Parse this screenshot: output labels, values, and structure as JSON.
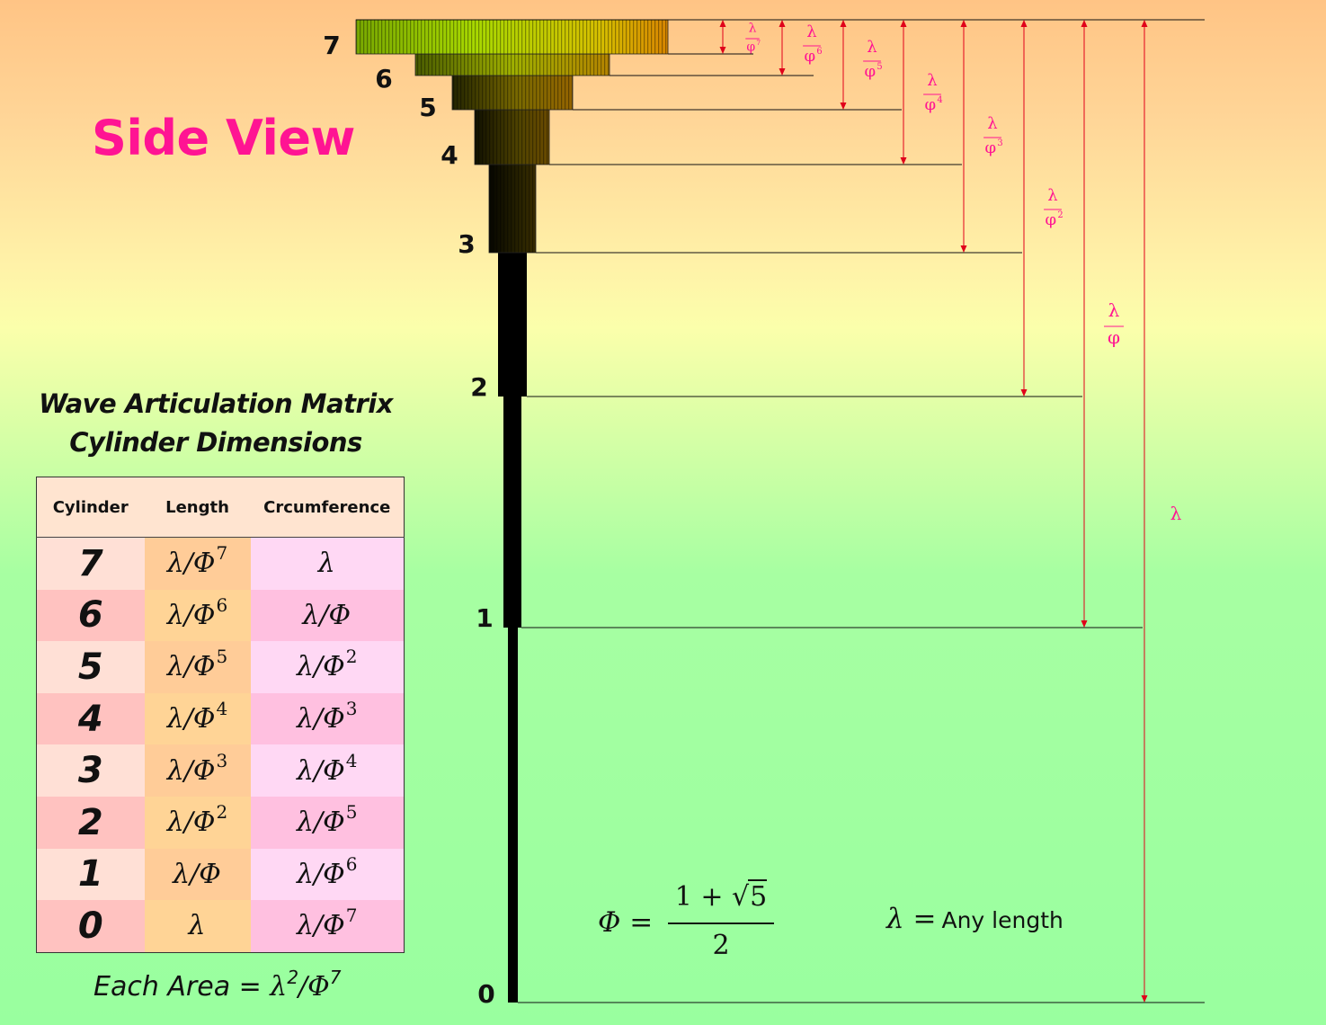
{
  "title": "Side View",
  "table_heading": {
    "line1": "Wave Articulation Matrix",
    "line2": "Cylinder Dimensions"
  },
  "table": {
    "columns": [
      "Cylinder",
      "Length",
      "Crcumference"
    ],
    "rows": [
      {
        "cylinder": "7",
        "length": {
          "base": "λ/Φ",
          "exp": "7"
        },
        "circumference": {
          "base": "λ",
          "exp": ""
        }
      },
      {
        "cylinder": "6",
        "length": {
          "base": "λ/Φ",
          "exp": "6"
        },
        "circumference": {
          "base": "λ/Φ",
          "exp": ""
        }
      },
      {
        "cylinder": "5",
        "length": {
          "base": "λ/Φ",
          "exp": "5"
        },
        "circumference": {
          "base": "λ/Φ",
          "exp": "2"
        }
      },
      {
        "cylinder": "4",
        "length": {
          "base": "λ/Φ",
          "exp": "4"
        },
        "circumference": {
          "base": "λ/Φ",
          "exp": "3"
        }
      },
      {
        "cylinder": "3",
        "length": {
          "base": "λ/Φ",
          "exp": "3"
        },
        "circumference": {
          "base": "λ/Φ",
          "exp": "4"
        }
      },
      {
        "cylinder": "2",
        "length": {
          "base": "λ/Φ",
          "exp": "2"
        },
        "circumference": {
          "base": "λ/Φ",
          "exp": "5"
        }
      },
      {
        "cylinder": "1",
        "length": {
          "base": "λ/Φ",
          "exp": ""
        },
        "circumference": {
          "base": "λ/Φ",
          "exp": "6"
        }
      },
      {
        "cylinder": "0",
        "length": {
          "base": "λ",
          "exp": ""
        },
        "circumference": {
          "base": "λ/Φ",
          "exp": "7"
        }
      }
    ]
  },
  "area_note": {
    "prefix": "Each Area = ",
    "a": "λ",
    "a_exp": "2",
    "b": "/Φ",
    "b_exp": "7"
  },
  "phi_definition": {
    "lhs": "Φ =",
    "numerator_left": "1 + √",
    "numerator_root": "5",
    "denominator": "2"
  },
  "lambda_definition": {
    "math": "λ =",
    "text": "Any length"
  },
  "diagram": {
    "level_labels": [
      "0",
      "1",
      "2",
      "3",
      "4",
      "5",
      "6",
      "7"
    ],
    "dimension_labels": [
      {
        "level": 7,
        "num": "λ",
        "den": "φ",
        "exp": "7"
      },
      {
        "level": 6,
        "num": "λ",
        "den": "φ",
        "exp": "6"
      },
      {
        "level": 5,
        "num": "λ",
        "den": "φ",
        "exp": "5"
      },
      {
        "level": 4,
        "num": "λ",
        "den": "φ",
        "exp": "4"
      },
      {
        "level": 3,
        "num": "λ",
        "den": "φ",
        "exp": "3"
      },
      {
        "level": 2,
        "num": "λ",
        "den": "φ",
        "exp": "2"
      },
      {
        "level": 1,
        "num": "λ",
        "den": "φ",
        "exp": ""
      },
      {
        "level": 0,
        "num": "λ",
        "den": "",
        "exp": ""
      }
    ],
    "colors": {
      "line": "#111111",
      "arrow": "#e0001a",
      "dimension_text": "#ff1493",
      "cylinder_base": "#000000",
      "top_gradient": [
        "#78a800",
        "#a8d800",
        "#d6c000",
        "#d88600"
      ]
    }
  }
}
